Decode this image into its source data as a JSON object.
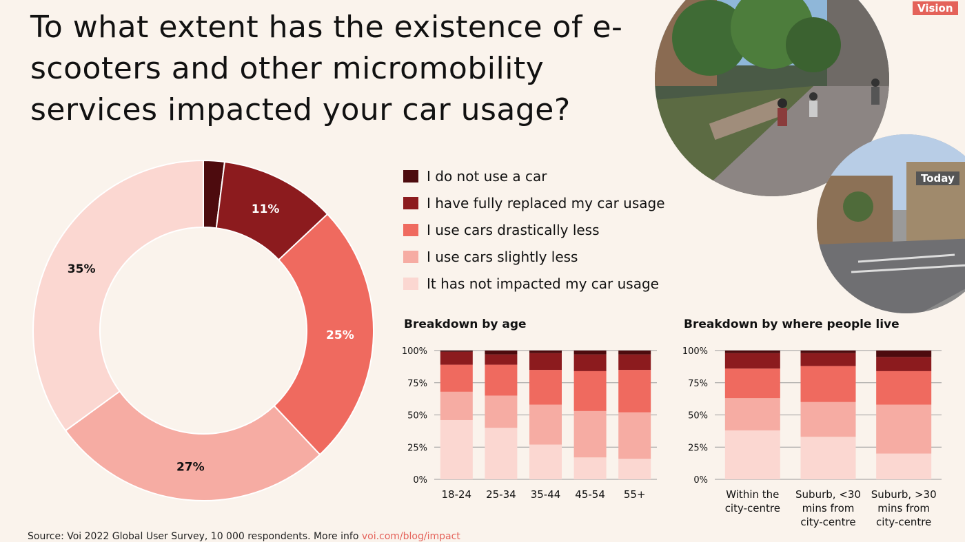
{
  "title": "To what extent has the existence of e-scooters and other micromobility services impacted your car usage?",
  "colors": {
    "background": "#faf3ec",
    "no_car": "#4d0b0e",
    "fully_replaced": "#8c1b1e",
    "drastically_less": "#ef6a5f",
    "slightly_less": "#f6aca3",
    "not_impacted": "#fbd7d1",
    "accent": "#e4625a",
    "today_tag": "#555555"
  },
  "legend": [
    {
      "label": "I do not use a car",
      "color": "#4d0b0e"
    },
    {
      "label": "I have fully replaced my car usage",
      "color": "#8c1b1e"
    },
    {
      "label": "I use cars drastically less",
      "color": "#ef6a5f"
    },
    {
      "label": "I use cars slightly less",
      "color": "#f6aca3"
    },
    {
      "label": "It has not impacted my car usage",
      "color": "#fbd7d1"
    }
  ],
  "photos": {
    "vision_label": "Vision",
    "today_label": "Today"
  },
  "footer": {
    "source": "Source: Voi 2022 Global User Survey, 10 000 respondents. More info ",
    "link": "voi.com/blog/impact"
  },
  "chart_data": [
    {
      "type": "pie",
      "variant": "donut",
      "categories": [
        "I do not use a car",
        "I have fully replaced my car usage",
        "I use cars drastically less",
        "I use cars slightly less",
        "It has not impacted my car usage"
      ],
      "values": [
        2,
        11,
        25,
        27,
        35
      ],
      "labels": [
        "",
        "11%",
        "25%",
        "27%",
        "35%"
      ]
    },
    {
      "type": "bar",
      "stacked": true,
      "title": "Breakdown by age",
      "categories": [
        "18-24",
        "25-34",
        "35-44",
        "45-54",
        "55+"
      ],
      "yticks": [
        "0%",
        "25%",
        "50%",
        "75%",
        "100%"
      ],
      "ylim": [
        0,
        100
      ],
      "series": [
        {
          "name": "It has not impacted my car usage",
          "values": [
            46,
            40,
            27,
            17,
            16
          ]
        },
        {
          "name": "I use cars slightly less",
          "values": [
            22,
            25,
            31,
            36,
            36
          ]
        },
        {
          "name": "I use cars drastically less",
          "values": [
            21,
            24,
            27,
            31,
            33
          ]
        },
        {
          "name": "I have fully replaced my car usage",
          "values": [
            10,
            8,
            13,
            13,
            12
          ]
        },
        {
          "name": "I do not use a car",
          "values": [
            1,
            3,
            2,
            3,
            3
          ]
        }
      ]
    },
    {
      "type": "bar",
      "stacked": true,
      "title": "Breakdown by where people live",
      "categories": [
        [
          "Within the",
          "city-centre"
        ],
        [
          "Suburb, <30",
          "mins from",
          "city-centre"
        ],
        [
          "Suburb, >30",
          "mins from",
          "city-centre"
        ]
      ],
      "yticks": [
        "0%",
        "25%",
        "50%",
        "75%",
        "100%"
      ],
      "ylim": [
        0,
        100
      ],
      "series": [
        {
          "name": "It has not impacted my car usage",
          "values": [
            38,
            33,
            20
          ]
        },
        {
          "name": "I use cars slightly less",
          "values": [
            25,
            27,
            38
          ]
        },
        {
          "name": "I use cars drastically less",
          "values": [
            23,
            28,
            26
          ]
        },
        {
          "name": "I have fully replaced my car usage",
          "values": [
            12,
            10,
            11
          ]
        },
        {
          "name": "I do not use a car",
          "values": [
            2,
            2,
            5
          ]
        }
      ]
    }
  ]
}
